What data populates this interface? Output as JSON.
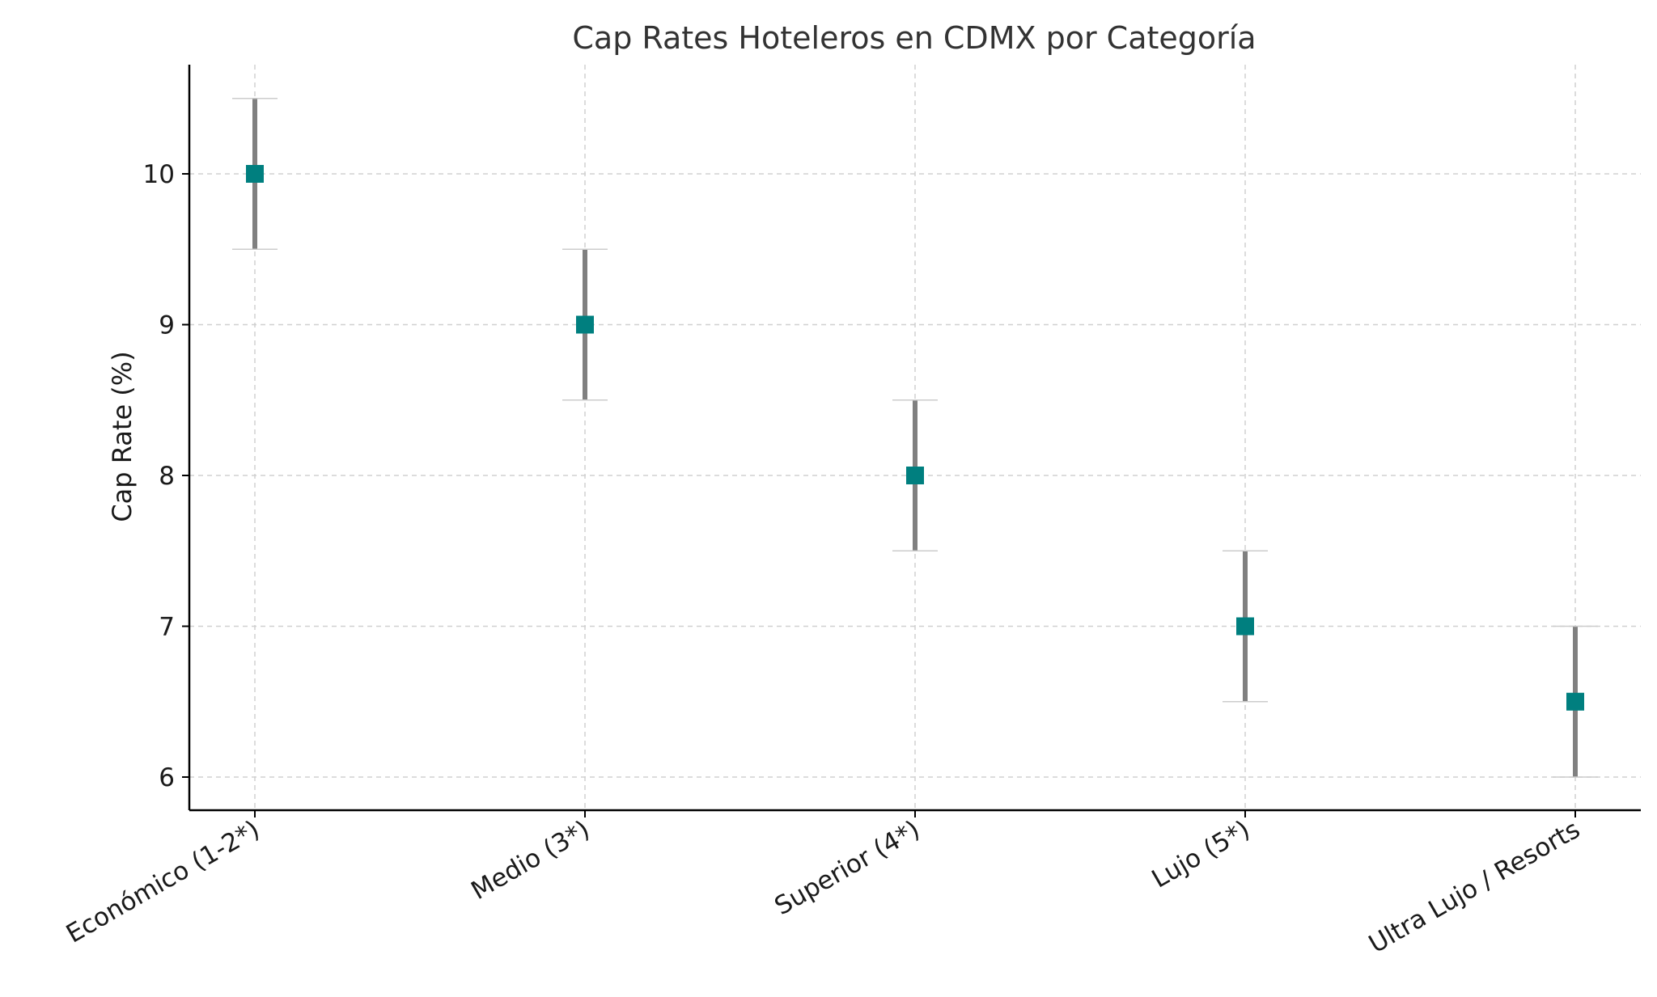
{
  "chart_data": {
    "type": "scatter",
    "title": "Cap Rates Hoteleros en CDMX por Categoría",
    "xlabel": "",
    "ylabel": "Cap Rate (%)",
    "categories": [
      "Económico (1-2*)",
      "Medio (3*)",
      "Superior (4*)",
      "Lujo (5*)",
      "Ultra Lujo / Resorts"
    ],
    "values": [
      10,
      9,
      8,
      7,
      6.5
    ],
    "error_low": [
      9.5,
      8.5,
      7.5,
      6.5,
      6.0
    ],
    "error_high": [
      10.5,
      9.5,
      8.5,
      7.5,
      7.0
    ],
    "yticks": [
      6,
      7,
      8,
      9,
      10
    ],
    "ylim": [
      5.78,
      10.73
    ],
    "grid": true,
    "marker": "square",
    "colors": {
      "marker": "#007f7f",
      "errorbar": "#808080",
      "grid": "#d0d0d0",
      "axis": "#000000",
      "text": "#1a1a1a"
    }
  }
}
